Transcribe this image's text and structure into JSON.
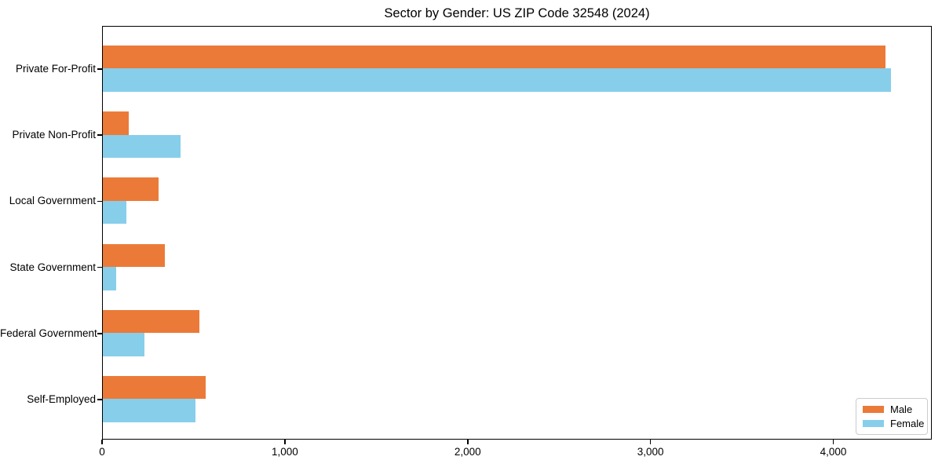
{
  "title": "Sector by Gender: US ZIP Code 32548 (2024)",
  "colors": {
    "male": "#EB7A38",
    "female": "#87CEEB",
    "axis": "#000000",
    "legend_border": "#cccccc",
    "background": "#ffffff"
  },
  "chart_data": {
    "type": "bar",
    "orientation": "horizontal",
    "title": "Sector by Gender: US ZIP Code 32548 (2024)",
    "categories": [
      "Private For-Profit",
      "Private Non-Profit",
      "Local Government",
      "State Government",
      "Federal Government",
      "Self-Employed"
    ],
    "series": [
      {
        "name": "Male",
        "color": "#EB7A38",
        "values": [
          4280,
          140,
          305,
          340,
          530,
          563
        ]
      },
      {
        "name": "Female",
        "color": "#87CEEB",
        "values": [
          4310,
          425,
          127,
          75,
          228,
          505
        ]
      }
    ],
    "xlabel": "",
    "ylabel": "",
    "xlim": [
      0,
      4530
    ],
    "xticks": [
      0,
      1000,
      2000,
      3000,
      4000
    ],
    "xtick_labels": [
      "0",
      "1,000",
      "2,000",
      "3,000",
      "4,000"
    ],
    "grid": false,
    "legend": {
      "position": "lower right",
      "entries": [
        "Male",
        "Female"
      ]
    }
  }
}
